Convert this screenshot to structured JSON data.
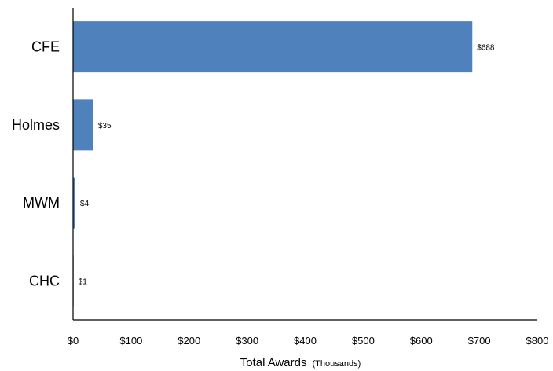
{
  "chart_data": {
    "type": "bar",
    "orientation": "horizontal",
    "categories": [
      "CFE",
      "Holmes",
      "MWM",
      "CHC"
    ],
    "values": [
      688,
      35,
      4,
      1
    ],
    "data_labels": [
      "$688",
      "$35",
      "$4",
      "$1"
    ],
    "xlim": [
      0,
      800
    ],
    "x_ticks": [
      0,
      100,
      200,
      300,
      400,
      500,
      600,
      700,
      800
    ],
    "x_tick_labels": [
      "$0",
      "$100",
      "$200",
      "$300",
      "$400",
      "$500",
      "$600",
      "$700",
      "$800"
    ],
    "xlabel": "Total Awards",
    "xlabel_suffix": "(Thousands)",
    "ylabel": "",
    "title": "",
    "grid": false,
    "legend": "none",
    "bar_color": "#4f81bd"
  }
}
